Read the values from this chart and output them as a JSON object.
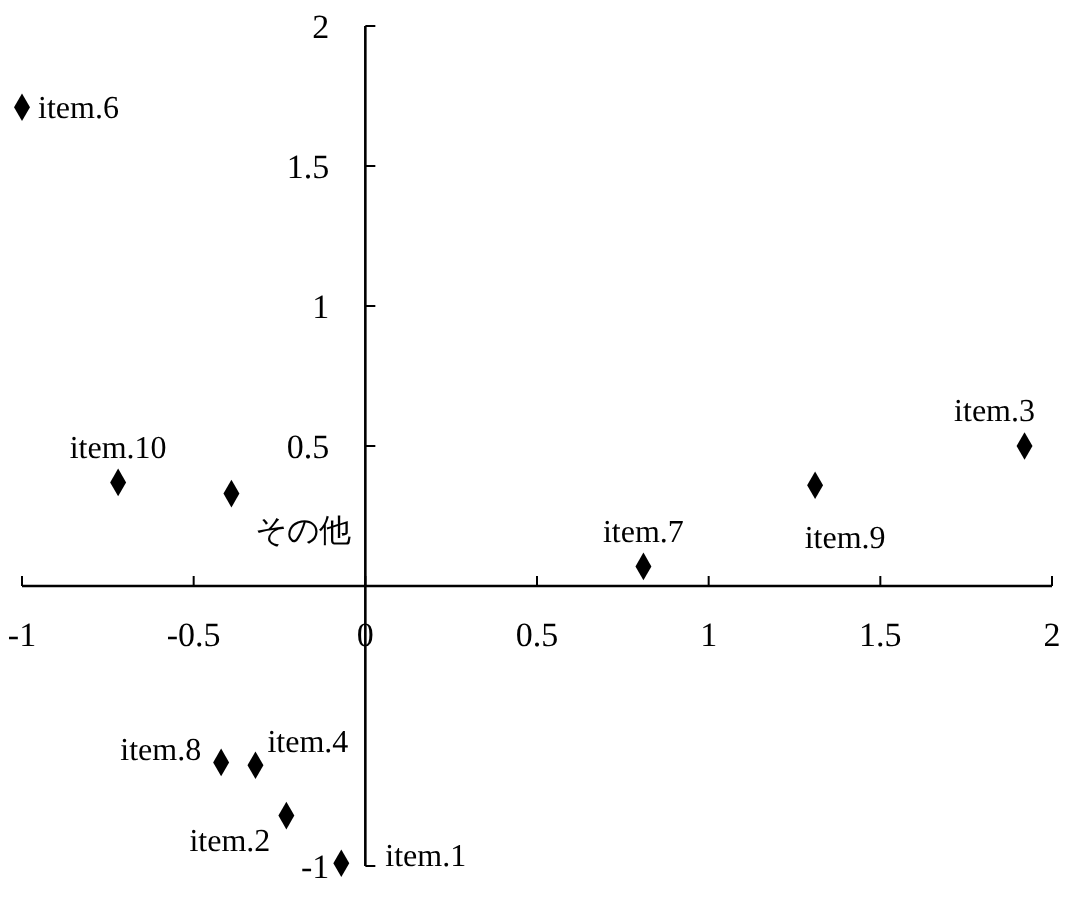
{
  "chart_data": {
    "type": "scatter",
    "xlim": [
      -1,
      2
    ],
    "ylim": [
      -1,
      2
    ],
    "xticks": [
      -1,
      -0.5,
      0,
      0.5,
      1,
      1.5,
      2
    ],
    "yticks": [
      -1,
      0.5,
      1,
      1.5,
      2
    ],
    "marker": "diamond",
    "grid": false,
    "series": [
      {
        "name": "item.6",
        "color": "#000000",
        "x": [
          -1.0
        ],
        "values": [
          1.71
        ]
      },
      {
        "name": "item.10",
        "color": "#000000",
        "x": [
          -0.72
        ],
        "values": [
          0.37
        ]
      },
      {
        "name": "その他",
        "color": "#000000",
        "x": [
          -0.39
        ],
        "values": [
          0.33
        ]
      },
      {
        "name": "item.7",
        "color": "#000000",
        "x": [
          0.81
        ],
        "values": [
          0.07
        ]
      },
      {
        "name": "item.9",
        "color": "#000000",
        "x": [
          1.31
        ],
        "values": [
          0.36
        ]
      },
      {
        "name": "item.3",
        "color": "#000000",
        "x": [
          1.92
        ],
        "values": [
          0.5
        ]
      },
      {
        "name": "item.8",
        "color": "#000000",
        "x": [
          -0.42
        ],
        "values": [
          -0.63
        ]
      },
      {
        "name": "item.4",
        "color": "#000000",
        "x": [
          -0.32
        ],
        "values": [
          -0.64
        ]
      },
      {
        "name": "item.2",
        "color": "#000000",
        "x": [
          -0.23
        ],
        "values": [
          -0.82
        ]
      },
      {
        "name": "item.1",
        "color": "#000000",
        "x": [
          -0.07
        ],
        "values": [
          -0.99
        ]
      }
    ]
  }
}
